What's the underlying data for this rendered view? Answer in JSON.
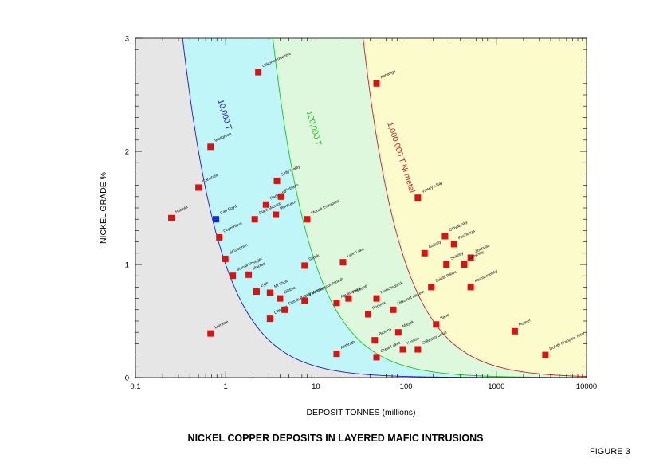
{
  "chart_data": {
    "type": "scatter",
    "title": "NICKEL COPPER DEPOSITS IN LAYERED MAFIC INTRUSIONS",
    "figure_label": "FIGURE 3",
    "xlabel": "DEPOSIT TONNES (millions)",
    "ylabel": "NICKEL GRADE %",
    "x_scale": "log",
    "xlim": [
      0.1,
      10000
    ],
    "ylim": [
      0,
      3
    ],
    "x_ticks": [
      "0.1",
      "1",
      "10",
      "100",
      "1000",
      "10000"
    ],
    "y_ticks": [
      "0",
      "1",
      "2",
      "3"
    ],
    "grid": false,
    "curves": [
      {
        "label": "10,000 T",
        "nickel_metal_tonnes": 10000,
        "color": "#1a1acc",
        "fill": "#c0f6f8"
      },
      {
        "label": "100,000 T",
        "nickel_metal_tonnes": 100000,
        "color": "#22c022",
        "fill": "#ddf8dd"
      },
      {
        "label": "1,000,000 T Ni metal",
        "nickel_metal_tonnes": 1000000,
        "color": "#d42020",
        "fill": "#fbfbcc"
      }
    ],
    "background_fill": "#e6e6e6",
    "marker_color": "#e01010",
    "highlight_color": "#1030e0",
    "points": [
      {
        "label": "Hakwia",
        "x": 0.25,
        "y": 1.41
      },
      {
        "label": "Canalask",
        "x": 0.5,
        "y": 1.68
      },
      {
        "label": "Wellgreen",
        "x": 0.68,
        "y": 2.04
      },
      {
        "label": "Copernicus",
        "x": 0.85,
        "y": 1.24
      },
      {
        "label": "St Stephen",
        "x": 0.99,
        "y": 1.05
      },
      {
        "label": "Munali Voyager",
        "x": 1.2,
        "y": 0.9
      },
      {
        "label": "Lorraine",
        "x": 0.68,
        "y": 0.39
      },
      {
        "label": "Macrae",
        "x": 1.8,
        "y": 0.91
      },
      {
        "label": "Giant Mascot",
        "x": 2.1,
        "y": 1.4
      },
      {
        "label": "Radio Hill",
        "x": 2.8,
        "y": 1.53
      },
      {
        "label": "Sally Malay",
        "x": 3.7,
        "y": 1.74
      },
      {
        "label": "Pelsano",
        "x": 4.1,
        "y": 1.6
      },
      {
        "label": "Montcalm",
        "x": 3.6,
        "y": 1.44
      },
      {
        "label": "Eyje",
        "x": 2.2,
        "y": 0.76
      },
      {
        "label": "Mt Sholl",
        "x": 3.1,
        "y": 0.75
      },
      {
        "label": "Diktolo",
        "x": 4.0,
        "y": 0.7
      },
      {
        "label": "Littlemill",
        "x": 3.1,
        "y": 0.52
      },
      {
        "label": "Duluth Babbit Massive",
        "x": 4.5,
        "y": 0.6
      },
      {
        "label": "Sutluk",
        "x": 7.5,
        "y": 0.99
      },
      {
        "label": "Munali Enterprise",
        "x": 8.0,
        "y": 1.4
      },
      {
        "label": "Vammala (combined)",
        "x": 7.5,
        "y": 0.68
      },
      {
        "label": "Uitkomst massive",
        "x": 2.3,
        "y": 2.7
      },
      {
        "label": "Lynn Lake",
        "x": 20,
        "y": 1.02
      },
      {
        "label": "Kotalahti",
        "x": 23,
        "y": 0.7
      },
      {
        "label": "Aguablanca",
        "x": 17,
        "y": 0.66
      },
      {
        "label": "Monchegorsk",
        "x": 47,
        "y": 0.7
      },
      {
        "label": "Phoenix",
        "x": 38,
        "y": 0.56
      },
      {
        "label": "Uitkomst dissem",
        "x": 72,
        "y": 0.6
      },
      {
        "label": "Browns",
        "x": 45,
        "y": 0.33
      },
      {
        "label": "Mayak",
        "x": 82,
        "y": 0.4
      },
      {
        "label": "Anthrath",
        "x": 17,
        "y": 0.21
      },
      {
        "label": "Great Lakes",
        "x": 47,
        "y": 0.18
      },
      {
        "label": "Kevitsa",
        "x": 92,
        "y": 0.25
      },
      {
        "label": "Stillwater basal",
        "x": 135,
        "y": 0.25
      },
      {
        "label": "Kabanga",
        "x": 47,
        "y": 2.6
      },
      {
        "label": "Voisey's Bay",
        "x": 135,
        "y": 1.59
      },
      {
        "label": "Gubsky",
        "x": 160,
        "y": 1.1
      },
      {
        "label": "Oktyabrsky",
        "x": 270,
        "y": 1.25
      },
      {
        "label": "Pechenga",
        "x": 340,
        "y": 1.18
      },
      {
        "label": "Skalisty",
        "x": 280,
        "y": 1.0
      },
      {
        "label": "Jinchuan",
        "x": 520,
        "y": 1.06
      },
      {
        "label": "Talnyrsky",
        "x": 440,
        "y": 1.0
      },
      {
        "label": "Komsomolsky",
        "x": 520,
        "y": 0.8
      },
      {
        "label": "Selebi Pikwe",
        "x": 190,
        "y": 0.8
      },
      {
        "label": "Babel",
        "x": 215,
        "y": 0.47
      },
      {
        "label": "Plateef",
        "x": 1600,
        "y": 0.41
      },
      {
        "label": "Duluth Complex Total",
        "x": 3500,
        "y": 0.2
      },
      {
        "label": "Carr Boyd",
        "x": 0.78,
        "y": 1.4,
        "highlight": true
      }
    ]
  }
}
